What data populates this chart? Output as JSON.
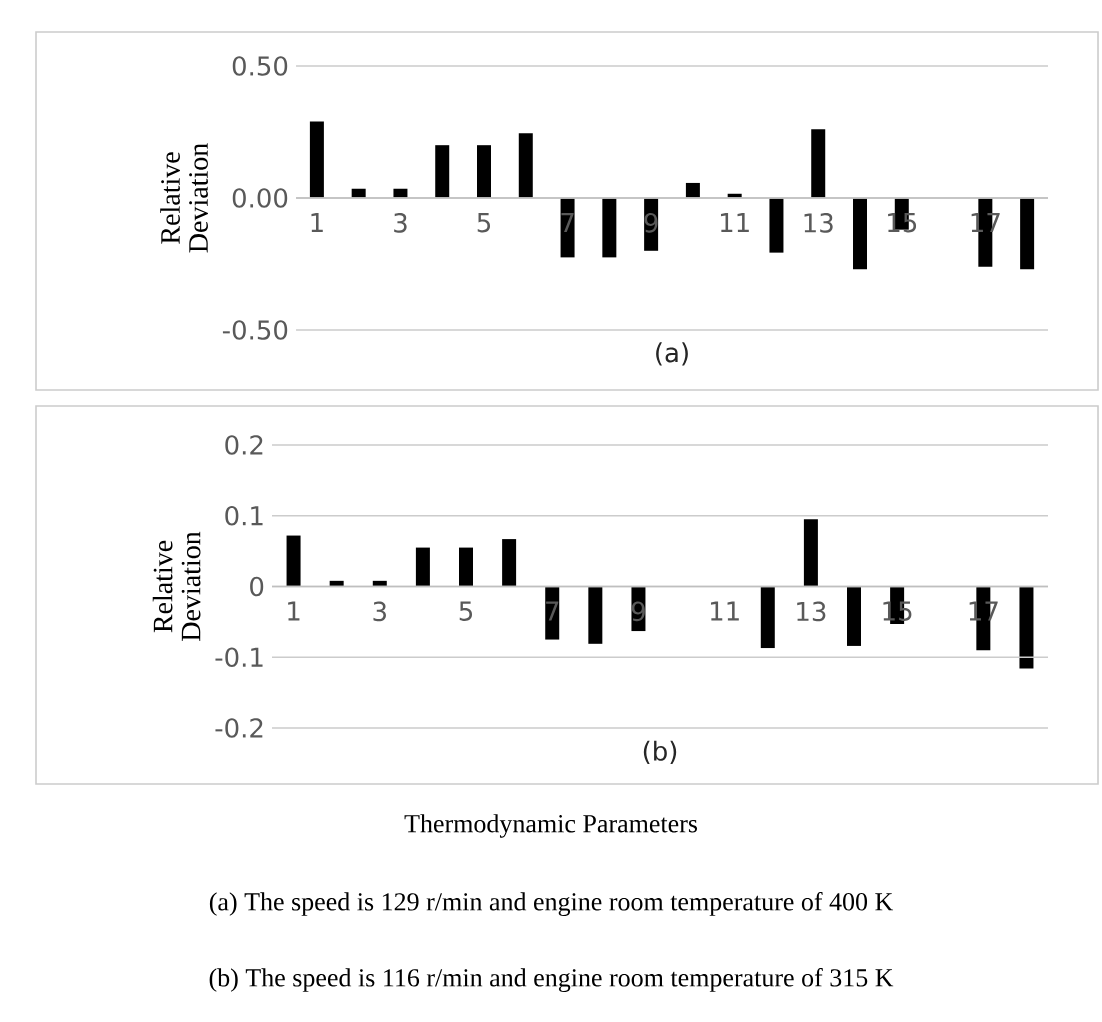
{
  "chart_data": [
    {
      "type": "bar",
      "xlabel": "(a)",
      "ylabel": "Relative Deviation",
      "categories": [
        "1",
        null,
        "3",
        null,
        "5",
        null,
        "7",
        null,
        "9",
        null,
        "11",
        null,
        "13",
        null,
        "15",
        null,
        "17",
        null
      ],
      "values": [
        0.29,
        0.035,
        0.035,
        0.2,
        0.2,
        0.245,
        -0.225,
        -0.225,
        -0.2,
        0.057,
        0.016,
        -0.207,
        0.26,
        -0.27,
        -0.12,
        0,
        -0.26,
        -0.27
      ],
      "color": "#000000",
      "ylim": [
        -0.5,
        0.5
      ],
      "yticks": [
        {
          "value": -0.5,
          "label": "-0.50"
        },
        {
          "value": 0,
          "label": "0.00"
        },
        {
          "value": 0.5,
          "label": "0.50"
        }
      ],
      "grid": "y"
    },
    {
      "type": "bar",
      "xlabel": "(b)",
      "ylabel": "Relative Deviation",
      "categories": [
        "1",
        null,
        "3",
        null,
        "5",
        null,
        "7",
        null,
        "9",
        null,
        "11",
        null,
        "13",
        null,
        "15",
        null,
        "17",
        null
      ],
      "values": [
        0.072,
        0.008,
        0.008,
        0.055,
        0.055,
        0.067,
        -0.075,
        -0.081,
        -0.063,
        0,
        0,
        -0.087,
        0.095,
        -0.084,
        -0.053,
        0,
        -0.09,
        -0.116
      ],
      "color": "#000000",
      "ylim": [
        -0.2,
        0.2
      ],
      "yticks": [
        -0.2,
        -0.1,
        0,
        0.1,
        0.2
      ],
      "grid": "y",
      "annotations": [
        "Thermodynamic Parameters",
        "(a) The speed is 129 r/min and engine room temperature of 400 K",
        "(b) The speed is 116 r/min and engine room temperature of 315 K"
      ]
    }
  ]
}
